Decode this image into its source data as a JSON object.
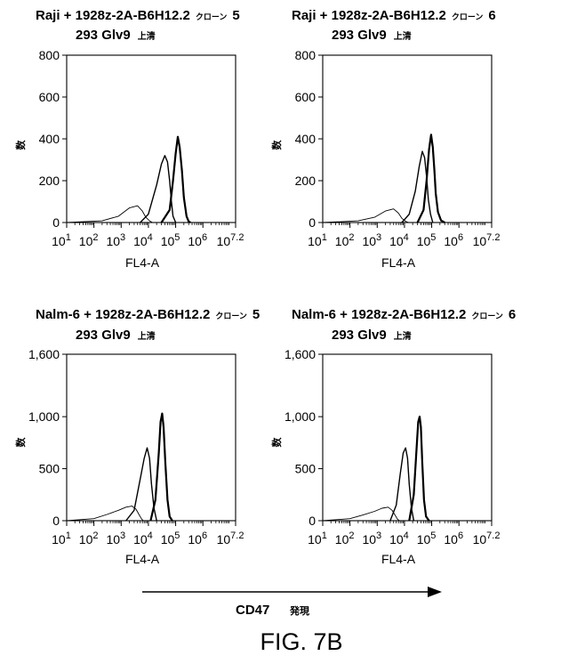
{
  "figure": {
    "caption": "FIG. 7B",
    "arrow_label": "CD47",
    "arrow_label_suffix": "発現"
  },
  "chart_data": [
    {
      "type": "line",
      "title_line1": "Raji + 1928z-2A-B6H12.2",
      "title_clone": "クローン",
      "clone_number": "5",
      "title_line2": "293 Glv9",
      "title_line2_suffix": "上清",
      "xlabel": "FL4-A",
      "ylabel": "数",
      "x_scale": "log",
      "xlim": [
        10,
        15848932
      ],
      "x_ticks": [
        {
          "base": "10",
          "exp": "1"
        },
        {
          "base": "10",
          "exp": "2"
        },
        {
          "base": "10",
          "exp": "3"
        },
        {
          "base": "10",
          "exp": "4"
        },
        {
          "base": "10",
          "exp": "5"
        },
        {
          "base": "10",
          "exp": "6"
        },
        {
          "base": "10",
          "exp": "7.2"
        }
      ],
      "ylim": [
        0,
        800
      ],
      "y_ticks": [
        "0",
        "200",
        "400",
        "600",
        "800"
      ],
      "y_tick_values": [
        0,
        200,
        400,
        600,
        800
      ],
      "series": [
        {
          "style": "thin",
          "x": [
            10,
            200,
            800,
            2000,
            4000,
            6000,
            8000,
            11000,
            14000
          ],
          "y": [
            0,
            8,
            30,
            70,
            80,
            55,
            25,
            8,
            0
          ]
        },
        {
          "style": "medium",
          "x": [
            5000,
            10000,
            20000,
            30000,
            40000,
            50000,
            60000,
            70000,
            80000,
            100000
          ],
          "y": [
            0,
            40,
            180,
            280,
            320,
            290,
            200,
            100,
            30,
            0
          ]
        },
        {
          "style": "bold",
          "x": [
            30000,
            60000,
            80000,
            100000,
            120000,
            140000,
            170000,
            200000,
            250000,
            300000,
            350000
          ],
          "y": [
            0,
            60,
            200,
            330,
            410,
            360,
            250,
            120,
            30,
            5,
            0
          ]
        }
      ]
    },
    {
      "type": "line",
      "title_line1": "Raji + 1928z-2A-B6H12.2",
      "title_clone": "クローン",
      "clone_number": "6",
      "title_line2": "293 Glv9",
      "title_line2_suffix": "上清",
      "xlabel": "FL4-A",
      "ylabel": "数",
      "x_scale": "log",
      "xlim": [
        10,
        15848932
      ],
      "x_ticks": [
        {
          "base": "10",
          "exp": "1"
        },
        {
          "base": "10",
          "exp": "2"
        },
        {
          "base": "10",
          "exp": "3"
        },
        {
          "base": "10",
          "exp": "4"
        },
        {
          "base": "10",
          "exp": "5"
        },
        {
          "base": "10",
          "exp": "6"
        },
        {
          "base": "10",
          "exp": "7.2"
        }
      ],
      "ylim": [
        0,
        800
      ],
      "y_ticks": [
        "0",
        "200",
        "400",
        "600",
        "800"
      ],
      "y_tick_values": [
        0,
        200,
        400,
        600,
        800
      ],
      "series": [
        {
          "style": "thin",
          "x": [
            10,
            200,
            800,
            2000,
            4000,
            6000,
            8000,
            11000,
            14000
          ],
          "y": [
            0,
            8,
            25,
            55,
            65,
            45,
            20,
            6,
            0
          ]
        },
        {
          "style": "medium",
          "x": [
            8000,
            15000,
            25000,
            35000,
            45000,
            55000,
            65000,
            75000,
            90000,
            110000
          ],
          "y": [
            0,
            40,
            150,
            270,
            340,
            310,
            220,
            110,
            40,
            0
          ]
        },
        {
          "style": "bold",
          "x": [
            30000,
            50000,
            65000,
            80000,
            95000,
            110000,
            125000,
            140000,
            170000,
            220000,
            300000
          ],
          "y": [
            0,
            60,
            200,
            350,
            420,
            360,
            250,
            140,
            50,
            10,
            0
          ]
        }
      ]
    },
    {
      "type": "line",
      "title_line1": "Nalm-6 + 1928z-2A-B6H12.2",
      "title_clone": "クローン",
      "clone_number": "5",
      "title_line2": "293 Glv9",
      "title_line2_suffix": "上清",
      "xlabel": "FL4-A",
      "ylabel": "数",
      "x_scale": "log",
      "xlim": [
        10,
        15848932
      ],
      "x_ticks": [
        {
          "base": "10",
          "exp": "1"
        },
        {
          "base": "10",
          "exp": "2"
        },
        {
          "base": "10",
          "exp": "3"
        },
        {
          "base": "10",
          "exp": "4"
        },
        {
          "base": "10",
          "exp": "5"
        },
        {
          "base": "10",
          "exp": "6"
        },
        {
          "base": "10",
          "exp": "7.2"
        }
      ],
      "ylim": [
        0,
        1600
      ],
      "y_ticks": [
        "0",
        "500",
        "1,000",
        "1,600"
      ],
      "y_tick_values": [
        0,
        500,
        1000,
        1600
      ],
      "series": [
        {
          "style": "thin",
          "x": [
            10,
            100,
            300,
            800,
            1500,
            2500,
            3500,
            4500,
            5500,
            6500
          ],
          "y": [
            0,
            20,
            60,
            100,
            130,
            140,
            110,
            60,
            20,
            0
          ]
        },
        {
          "style": "medium",
          "x": [
            1500,
            3000,
            5000,
            7000,
            9000,
            11000,
            13000,
            16000,
            20000
          ],
          "y": [
            0,
            100,
            400,
            600,
            700,
            600,
            350,
            120,
            0
          ]
        },
        {
          "style": "bold",
          "x": [
            12000,
            18000,
            24000,
            28000,
            32000,
            36000,
            42000,
            50000,
            60000,
            75000
          ],
          "y": [
            0,
            200,
            650,
            950,
            1030,
            900,
            550,
            200,
            40,
            0
          ]
        }
      ]
    },
    {
      "type": "line",
      "title_line1": "Nalm-6 + 1928z-2A-B6H12.2",
      "title_clone": "クローン",
      "clone_number": "6",
      "title_line2": "293 Glv9",
      "title_line2_suffix": "上清",
      "xlabel": "FL4-A",
      "ylabel": "数",
      "x_scale": "log",
      "xlim": [
        10,
        15848932
      ],
      "x_ticks": [
        {
          "base": "10",
          "exp": "1"
        },
        {
          "base": "10",
          "exp": "2"
        },
        {
          "base": "10",
          "exp": "3"
        },
        {
          "base": "10",
          "exp": "4"
        },
        {
          "base": "10",
          "exp": "5"
        },
        {
          "base": "10",
          "exp": "6"
        },
        {
          "base": "10",
          "exp": "7.2"
        }
      ],
      "ylim": [
        0,
        1600
      ],
      "y_ticks": [
        "0",
        "500",
        "1,000",
        "1,600"
      ],
      "y_tick_values": [
        0,
        500,
        1000,
        1600
      ],
      "series": [
        {
          "style": "thin",
          "x": [
            10,
            100,
            300,
            800,
            1500,
            2500,
            3500,
            4500,
            5500,
            6500
          ],
          "y": [
            0,
            20,
            55,
            90,
            120,
            130,
            100,
            55,
            15,
            0
          ]
        },
        {
          "style": "medium",
          "x": [
            3000,
            5000,
            7000,
            9000,
            11000,
            13000,
            15000,
            18000,
            22000
          ],
          "y": [
            0,
            150,
            450,
            650,
            700,
            600,
            350,
            120,
            0
          ]
        },
        {
          "style": "bold",
          "x": [
            15000,
            22000,
            28000,
            32000,
            36000,
            40000,
            45000,
            52000,
            62000,
            80000
          ],
          "y": [
            0,
            250,
            700,
            950,
            1000,
            900,
            550,
            200,
            40,
            0
          ]
        }
      ]
    }
  ]
}
